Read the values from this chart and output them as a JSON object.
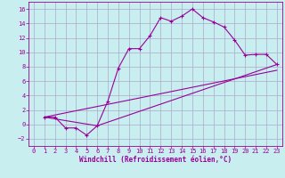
{
  "xlabel": "Windchill (Refroidissement éolien,°C)",
  "bg_color": "#c8eef0",
  "grid_color": "#aaaacc",
  "line_color": "#990099",
  "xlim": [
    -0.5,
    23.5
  ],
  "ylim": [
    -3.0,
    17.0
  ],
  "xticks": [
    0,
    1,
    2,
    3,
    4,
    5,
    6,
    7,
    8,
    9,
    10,
    11,
    12,
    13,
    14,
    15,
    16,
    17,
    18,
    19,
    20,
    21,
    22,
    23
  ],
  "yticks": [
    -2,
    0,
    2,
    4,
    6,
    8,
    10,
    12,
    14,
    16
  ],
  "line1_x": [
    1,
    2,
    3,
    4,
    5,
    6,
    7,
    8,
    9,
    10,
    11,
    12,
    13,
    14,
    15,
    16,
    17,
    18,
    19,
    20,
    21,
    22,
    23
  ],
  "line1_y": [
    1,
    1,
    -0.5,
    -0.5,
    -1.5,
    -0.2,
    3.2,
    7.8,
    10.5,
    10.5,
    12.3,
    14.8,
    14.3,
    15.0,
    16.0,
    14.8,
    14.2,
    13.5,
    11.7,
    9.6,
    9.7,
    9.7,
    8.3
  ],
  "line2_x": [
    1,
    23
  ],
  "line2_y": [
    1,
    7.5
  ],
  "line3_x": [
    1,
    6,
    23
  ],
  "line3_y": [
    1,
    -0.2,
    8.3
  ]
}
